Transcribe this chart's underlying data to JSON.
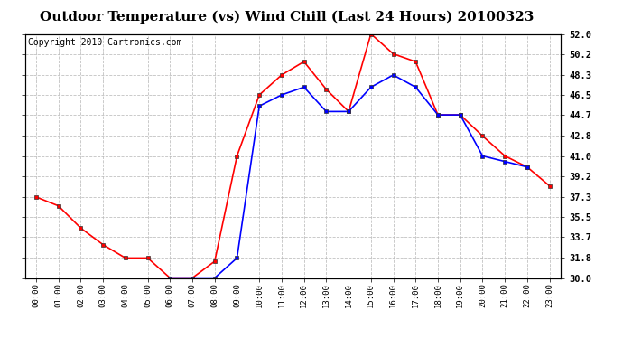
{
  "title": "Outdoor Temperature (vs) Wind Chill (Last 24 Hours) 20100323",
  "copyright": "Copyright 2010 Cartronics.com",
  "x_labels": [
    "00:00",
    "01:00",
    "02:00",
    "03:00",
    "04:00",
    "05:00",
    "06:00",
    "07:00",
    "08:00",
    "09:00",
    "10:00",
    "11:00",
    "12:00",
    "13:00",
    "14:00",
    "15:00",
    "16:00",
    "17:00",
    "18:00",
    "19:00",
    "20:00",
    "21:00",
    "22:00",
    "23:00"
  ],
  "temp_red": [
    37.3,
    36.5,
    34.5,
    33.0,
    31.8,
    31.8,
    30.0,
    30.0,
    31.5,
    41.0,
    46.5,
    48.3,
    49.5,
    47.0,
    45.0,
    52.0,
    50.2,
    49.5,
    44.7,
    44.7,
    42.8,
    41.0,
    40.0,
    38.3
  ],
  "wind_chill_blue": [
    null,
    null,
    null,
    null,
    null,
    null,
    30.0,
    30.0,
    30.0,
    31.8,
    45.5,
    46.5,
    47.2,
    45.0,
    45.0,
    47.2,
    48.3,
    47.2,
    44.7,
    44.7,
    41.0,
    40.5,
    40.0,
    null
  ],
  "ylim": [
    30.0,
    52.0
  ],
  "yticks": [
    30.0,
    31.8,
    33.7,
    35.5,
    37.3,
    39.2,
    41.0,
    42.8,
    44.7,
    46.5,
    48.3,
    50.2,
    52.0
  ],
  "red_color": "#ff0000",
  "blue_color": "#0000ff",
  "bg_color": "#ffffff",
  "grid_color": "#bbbbbb",
  "title_fontsize": 11,
  "copyright_fontsize": 7
}
